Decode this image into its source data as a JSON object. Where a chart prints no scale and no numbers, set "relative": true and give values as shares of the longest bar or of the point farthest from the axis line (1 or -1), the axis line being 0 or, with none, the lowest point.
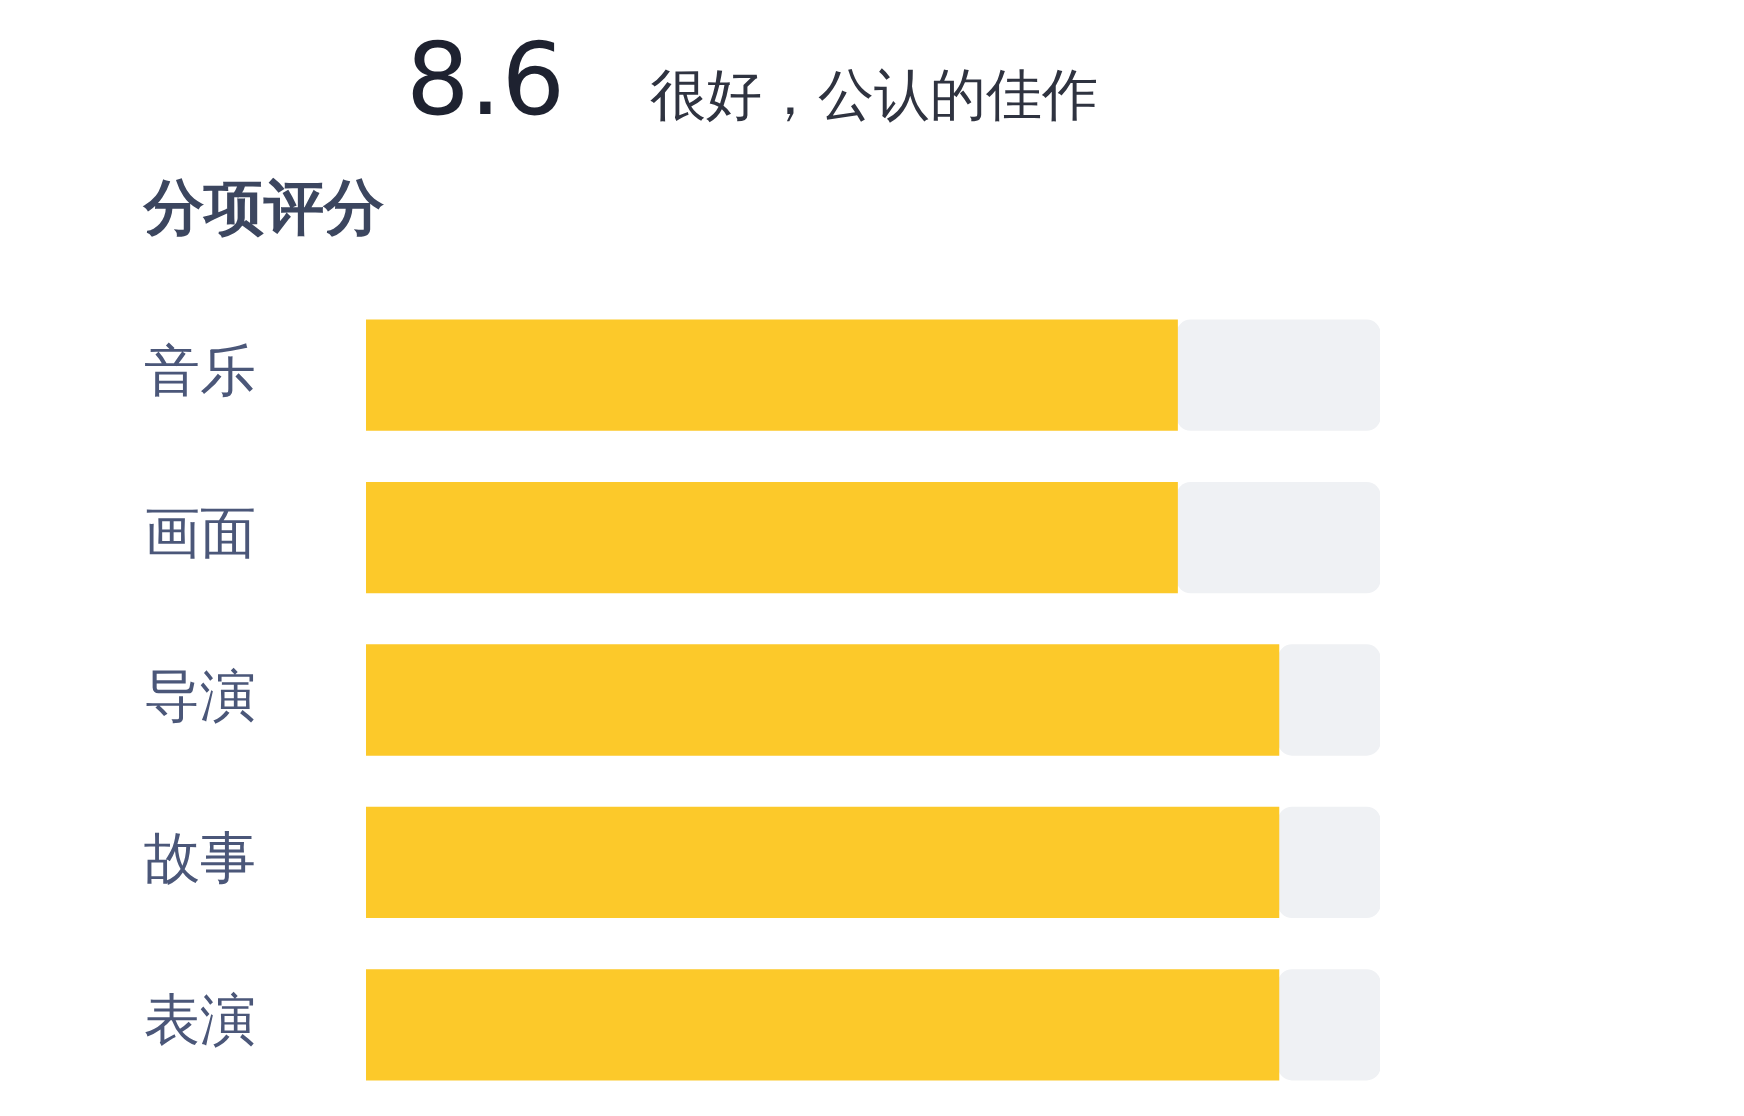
{
  "chart_data": {
    "type": "bar",
    "orientation": "horizontal",
    "stacked": true,
    "relative": true,
    "title": "分项评分",
    "annotations": [
      "8.6",
      "很好，公认的佳作"
    ],
    "categories": [
      "音乐",
      "画面",
      "导演",
      "故事",
      "表演"
    ],
    "series": [
      {
        "color": "#fcc92a",
        "values": [
          0.8,
          0.8,
          0.9,
          0.9,
          0.9
        ]
      },
      {
        "color": "#eff1f4",
        "values": [
          0.2,
          0.2,
          0.1,
          0.1,
          0.1
        ]
      }
    ]
  }
}
